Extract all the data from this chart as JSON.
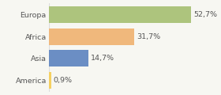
{
  "categories": [
    "Europa",
    "Africa",
    "Asia",
    "America"
  ],
  "values": [
    52.7,
    31.7,
    14.7,
    0.9
  ],
  "labels": [
    "52,7%",
    "31,7%",
    "14,7%",
    "0,9%"
  ],
  "bar_colors": [
    "#adc47d",
    "#f0b87c",
    "#6b8ec4",
    "#f5d060"
  ],
  "background_color": "#f7f7f2",
  "bar_height": 0.78,
  "xlim": [
    0,
    62
  ],
  "label_fontsize": 6.8,
  "tick_fontsize": 6.8,
  "label_color": "#555555",
  "grid_color": "#dddddd"
}
